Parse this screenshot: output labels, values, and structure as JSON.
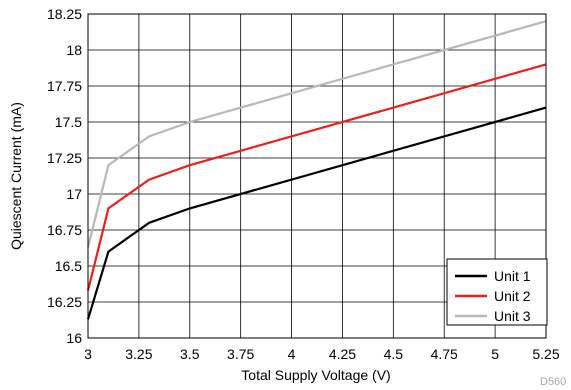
{
  "chart_data": {
    "type": "line",
    "xlabel": "Total Supply Voltage (V)",
    "ylabel": "Quiescent Current (mA)",
    "xlim": [
      3,
      5.25
    ],
    "ylim": [
      16,
      18.25
    ],
    "xticks": [
      "3",
      "3.25",
      "3.5",
      "3.75",
      "4",
      "4.25",
      "4.5",
      "4.75",
      "5",
      "5.25"
    ],
    "yticks": [
      "16",
      "16.25",
      "16.5",
      "16.75",
      "17",
      "17.25",
      "17.5",
      "17.75",
      "18",
      "18.25"
    ],
    "grid": true,
    "legend_position": "bottom-right",
    "series": [
      {
        "name": "Unit 1",
        "color": "#000000",
        "x": [
          3.0,
          3.1,
          3.3,
          3.5,
          5.25
        ],
        "y": [
          16.13,
          16.6,
          16.8,
          16.9,
          17.6
        ]
      },
      {
        "name": "Unit 2",
        "color": "#e8201e",
        "x": [
          3.0,
          3.1,
          3.3,
          3.5,
          5.25
        ],
        "y": [
          16.33,
          16.9,
          17.1,
          17.2,
          17.9
        ]
      },
      {
        "name": "Unit 3",
        "color": "#b8b8b8",
        "x": [
          3.0,
          3.1,
          3.3,
          3.5,
          5.25
        ],
        "y": [
          16.63,
          17.2,
          17.4,
          17.5,
          18.2
        ]
      }
    ],
    "footnote": "D560"
  }
}
